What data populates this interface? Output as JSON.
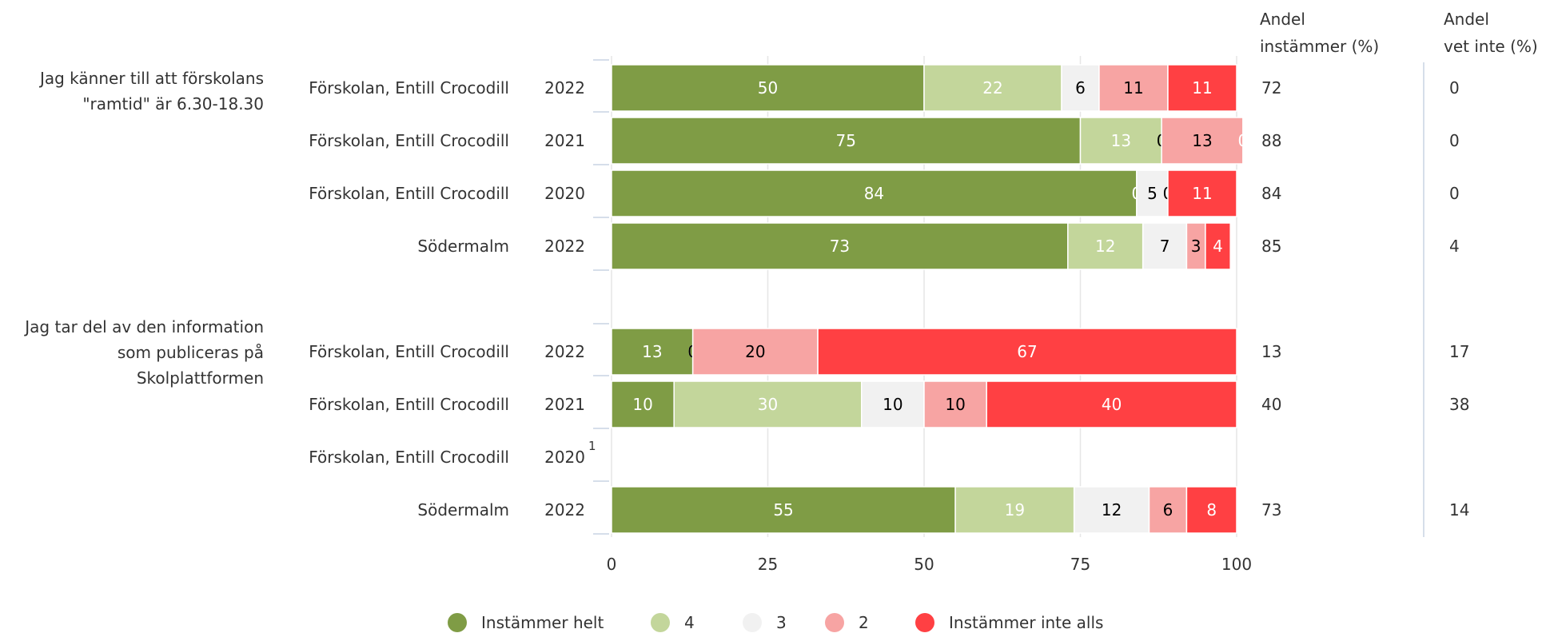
{
  "chart_data": {
    "type": "bar",
    "stacked": true,
    "orientation": "horizontal",
    "xlim": [
      0,
      100
    ],
    "x_ticks": [
      "0",
      "25",
      "50",
      "75",
      "100"
    ],
    "grid": true,
    "legend_position": "bottom",
    "series": [
      {
        "name": "Instämmer helt",
        "color": "#7f9c45"
      },
      {
        "name": "4",
        "color": "#c3d69b"
      },
      {
        "name": "3",
        "color": "#f1f1f1"
      },
      {
        "name": "2",
        "color": "#f7a4a3"
      },
      {
        "name": "Instämmer inte alls",
        "color": "#ff4043"
      }
    ],
    "columns": {
      "agree_header_line1": "Andel",
      "agree_header_line2": "instämmer (%)",
      "dontknow_header_line1": "Andel",
      "dontknow_header_line2": "vet inte (%)"
    },
    "groups": [
      {
        "question_lines": [
          "Jag känner till att förskolans",
          "\"ramtid\" är 6.30-18.30"
        ],
        "rows": [
          {
            "unit": "Förskolan, Entill Crocodill",
            "year": "2022",
            "footnote": "",
            "values": [
              50,
              22,
              6,
              11,
              11
            ],
            "agree": "72",
            "dontknow": "0"
          },
          {
            "unit": "Förskolan, Entill Crocodill",
            "year": "2021",
            "footnote": "",
            "values": [
              75,
              13,
              0,
              13,
              0
            ],
            "agree": "88",
            "dontknow": "0"
          },
          {
            "unit": "Förskolan, Entill Crocodill",
            "year": "2020",
            "footnote": "",
            "values": [
              84,
              0,
              5,
              0,
              11
            ],
            "agree": "84",
            "dontknow": "0"
          },
          {
            "unit": "Södermalm",
            "year": "2022",
            "footnote": "",
            "values": [
              73,
              12,
              7,
              3,
              4
            ],
            "agree": "85",
            "dontknow": "4"
          }
        ]
      },
      {
        "question_lines": [
          "Jag tar del av den information",
          "som publiceras på",
          "Skolplattformen"
        ],
        "rows": [
          {
            "unit": "Förskolan, Entill Crocodill",
            "year": "2022",
            "footnote": "",
            "values": [
              13,
              0,
              0,
              20,
              67
            ],
            "agree": "13",
            "dontknow": "17"
          },
          {
            "unit": "Förskolan, Entill Crocodill",
            "year": "2021",
            "footnote": "",
            "values": [
              10,
              30,
              10,
              10,
              40
            ],
            "agree": "40",
            "dontknow": "38"
          },
          {
            "unit": "Förskolan, Entill Crocodill",
            "year": "2020",
            "footnote": "1",
            "values": [],
            "agree": "",
            "dontknow": ""
          },
          {
            "unit": "Södermalm",
            "year": "2022",
            "footnote": "",
            "values": [
              55,
              19,
              12,
              6,
              8
            ],
            "agree": "73",
            "dontknow": "14"
          }
        ]
      }
    ]
  }
}
